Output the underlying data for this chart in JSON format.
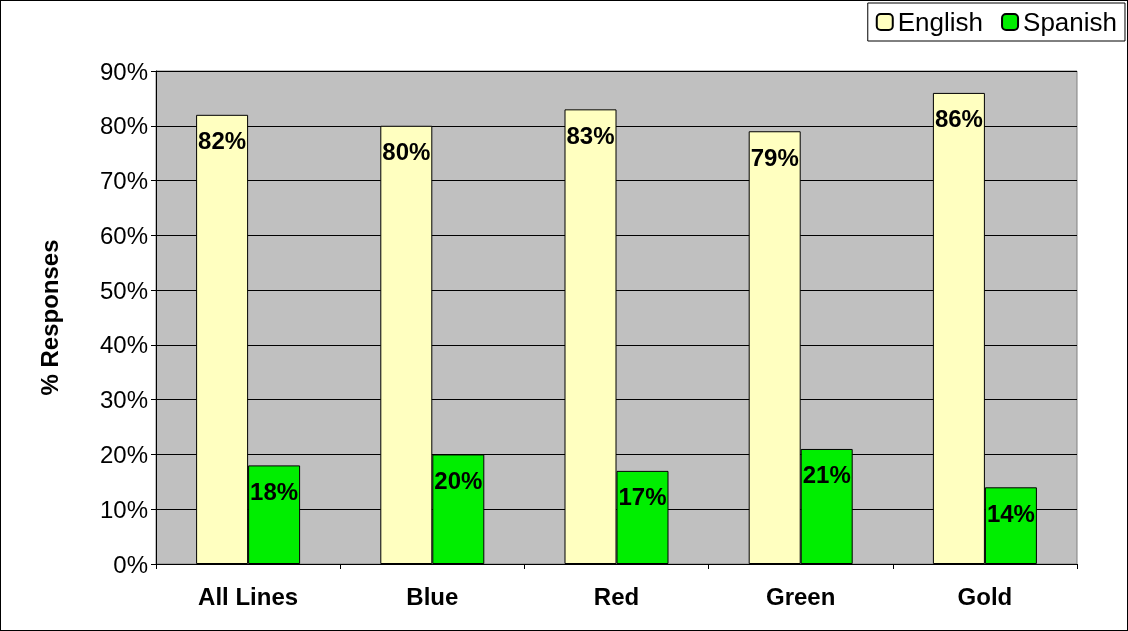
{
  "chart_data": {
    "type": "bar",
    "ylabel": "% Responses",
    "categories": [
      "All Lines",
      "Blue",
      "Red",
      "Green",
      "Gold"
    ],
    "series": [
      {
        "name": "English",
        "color": "#ffffc0",
        "values": [
          82,
          80,
          83,
          79,
          86
        ],
        "value_labels": [
          "82%",
          "80%",
          "83%",
          "79%",
          "86%"
        ]
      },
      {
        "name": "Spanish",
        "color": "#00ee00",
        "values": [
          18,
          20,
          17,
          21,
          14
        ],
        "value_labels": [
          "18%",
          "20%",
          "17%",
          "21%",
          "14%"
        ]
      }
    ],
    "ylim": [
      0,
      90
    ],
    "yticks": [
      {
        "value": 0,
        "label": "0%"
      },
      {
        "value": 10,
        "label": "10%"
      },
      {
        "value": 20,
        "label": "20%"
      },
      {
        "value": 30,
        "label": "30%"
      },
      {
        "value": 40,
        "label": "40%"
      },
      {
        "value": 50,
        "label": "50%"
      },
      {
        "value": 60,
        "label": "60%"
      },
      {
        "value": 70,
        "label": "70%"
      },
      {
        "value": 80,
        "label": "80%"
      },
      {
        "value": 90,
        "label": "90%"
      }
    ],
    "grid": "y",
    "legend": "top right"
  }
}
